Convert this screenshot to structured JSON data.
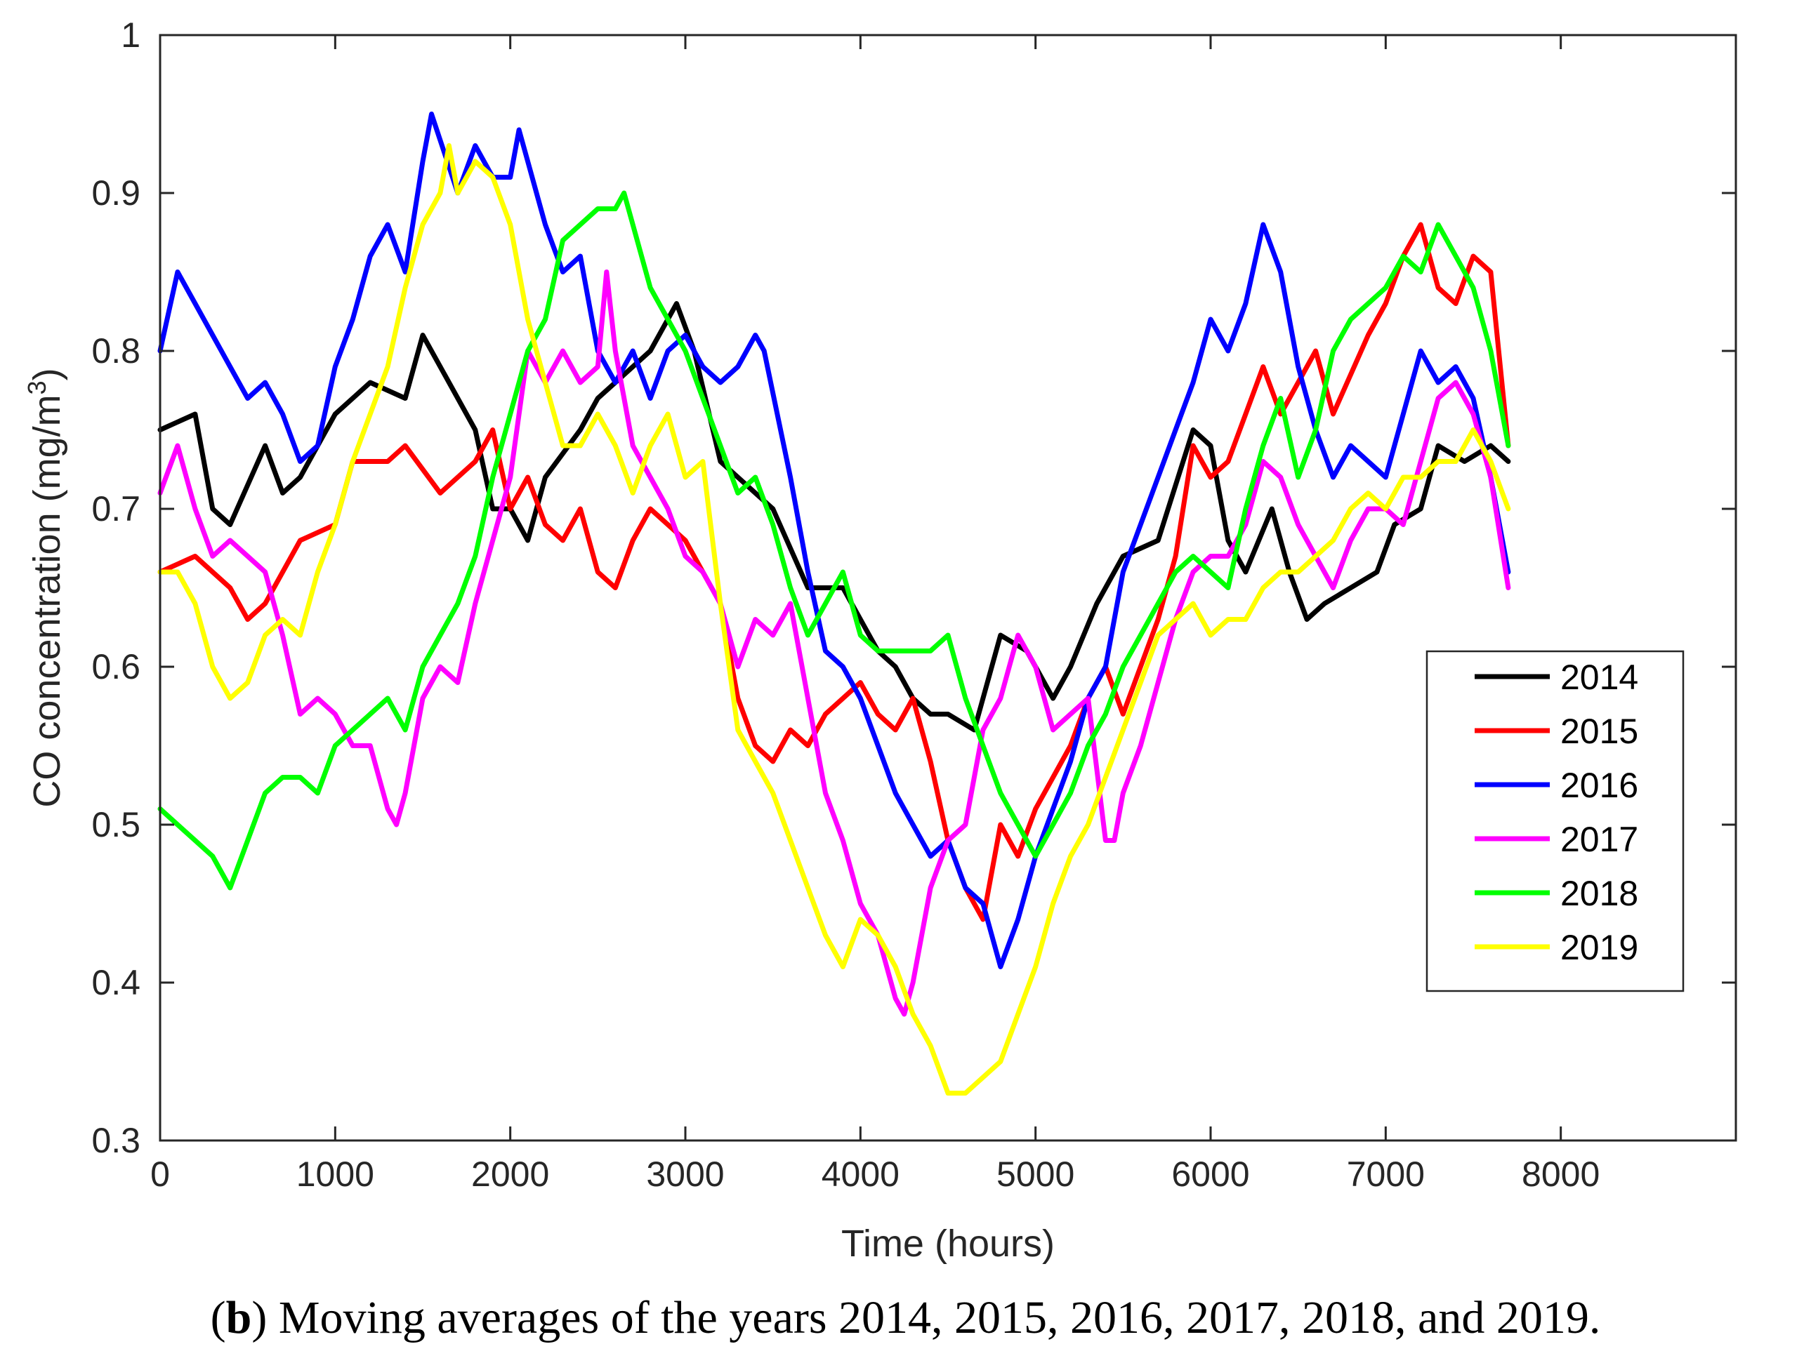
{
  "chart_data": {
    "type": "line",
    "title": "",
    "xlabel": "Time (hours)",
    "ylabel": "CO concentration (mg/m",
    "ylabel_superscript": "3",
    "ylabel_suffix": ")",
    "xlim": [
      0,
      9000
    ],
    "ylim": [
      0.3,
      1.0
    ],
    "xticks": [
      0,
      1000,
      2000,
      3000,
      4000,
      5000,
      6000,
      7000,
      8000
    ],
    "yticks": [
      0.3,
      0.4,
      0.5,
      0.6,
      0.7,
      0.8,
      0.9,
      1.0
    ],
    "xtick_labels": [
      "0",
      "1000",
      "2000",
      "3000",
      "4000",
      "5000",
      "6000",
      "7000",
      "8000"
    ],
    "ytick_labels": [
      "0.3",
      "0.4",
      "0.5",
      "0.6",
      "0.7",
      "0.8",
      "0.9",
      "1"
    ],
    "grid": false,
    "legend_position": "right-middle",
    "series": [
      {
        "name": "2014",
        "color": "#000000",
        "x": [
          0,
          200,
          300,
          400,
          600,
          700,
          800,
          1000,
          1200,
          1400,
          1500,
          1700,
          1800,
          1900,
          2000,
          2100,
          2200,
          2400,
          2500,
          2700,
          2800,
          2950,
          3050,
          3200,
          3400,
          3500,
          3700,
          3900,
          4000,
          4100,
          4200,
          4300,
          4400,
          4500,
          4650,
          4800,
          4950,
          5100,
          5200,
          5350,
          5500,
          5700,
          5900,
          6000,
          6100,
          6200,
          6350,
          6450,
          6550,
          6650,
          6800,
          6950,
          7050,
          7200,
          7300,
          7450,
          7600,
          7700
        ],
        "y": [
          0.75,
          0.76,
          0.7,
          0.69,
          0.74,
          0.71,
          0.72,
          0.76,
          0.78,
          0.77,
          0.81,
          0.77,
          0.75,
          0.7,
          0.7,
          0.68,
          0.72,
          0.75,
          0.77,
          0.79,
          0.8,
          0.83,
          0.8,
          0.73,
          0.71,
          0.7,
          0.65,
          0.65,
          0.63,
          0.61,
          0.6,
          0.58,
          0.57,
          0.57,
          0.56,
          0.62,
          0.61,
          0.58,
          0.6,
          0.64,
          0.67,
          0.68,
          0.75,
          0.74,
          0.68,
          0.66,
          0.7,
          0.66,
          0.63,
          0.64,
          0.65,
          0.66,
          0.69,
          0.7,
          0.74,
          0.73,
          0.74,
          0.73
        ]
      },
      {
        "name": "2015",
        "color": "#ff0000",
        "x": [
          0,
          200,
          400,
          500,
          600,
          800,
          1000,
          1100,
          1300,
          1400,
          1600,
          1800,
          1900,
          2000,
          2100,
          2200,
          2300,
          2400,
          2500,
          2600,
          2700,
          2800,
          2900,
          3000,
          3100,
          3200,
          3300,
          3400,
          3500,
          3600,
          3700,
          3800,
          3900,
          4000,
          4100,
          4200,
          4300,
          4400,
          4500,
          4600,
          4700,
          4800,
          4900,
          5000,
          5100,
          5200,
          5300,
          5400,
          5500,
          5700,
          5800,
          5900,
          6000,
          6100,
          6200,
          6300,
          6400,
          6500,
          6600,
          6700,
          6900,
          7000,
          7100,
          7200,
          7300,
          7400,
          7500,
          7600,
          7700
        ],
        "y": [
          0.66,
          0.67,
          0.65,
          0.63,
          0.64,
          0.68,
          0.69,
          0.73,
          0.73,
          0.74,
          0.71,
          0.73,
          0.75,
          0.7,
          0.72,
          0.69,
          0.68,
          0.7,
          0.66,
          0.65,
          0.68,
          0.7,
          0.69,
          0.68,
          0.66,
          0.64,
          0.58,
          0.55,
          0.54,
          0.56,
          0.55,
          0.57,
          0.58,
          0.59,
          0.57,
          0.56,
          0.58,
          0.54,
          0.49,
          0.46,
          0.44,
          0.5,
          0.48,
          0.51,
          0.53,
          0.55,
          0.58,
          0.6,
          0.57,
          0.63,
          0.67,
          0.74,
          0.72,
          0.73,
          0.76,
          0.79,
          0.76,
          0.78,
          0.8,
          0.76,
          0.81,
          0.83,
          0.86,
          0.88,
          0.84,
          0.83,
          0.86,
          0.85,
          0.74
        ]
      },
      {
        "name": "2016",
        "color": "#0000ff",
        "x": [
          0,
          100,
          200,
          300,
          400,
          500,
          600,
          700,
          800,
          900,
          1000,
          1100,
          1200,
          1300,
          1400,
          1500,
          1550,
          1700,
          1800,
          1900,
          2000,
          2050,
          2100,
          2200,
          2300,
          2400,
          2500,
          2600,
          2700,
          2800,
          2900,
          3000,
          3100,
          3200,
          3300,
          3400,
          3450,
          3600,
          3700,
          3800,
          3900,
          4000,
          4100,
          4200,
          4300,
          4400,
          4500,
          4600,
          4700,
          4800,
          4900,
          5000,
          5100,
          5200,
          5300,
          5400,
          5500,
          5700,
          5800,
          5900,
          6000,
          6100,
          6200,
          6300,
          6400,
          6500,
          6600,
          6700,
          6800,
          7000,
          7100,
          7200,
          7300,
          7400,
          7500,
          7600,
          7700
        ],
        "y": [
          0.8,
          0.85,
          0.83,
          0.81,
          0.79,
          0.77,
          0.78,
          0.76,
          0.73,
          0.74,
          0.79,
          0.82,
          0.86,
          0.88,
          0.85,
          0.92,
          0.95,
          0.9,
          0.93,
          0.91,
          0.91,
          0.94,
          0.92,
          0.88,
          0.85,
          0.86,
          0.8,
          0.78,
          0.8,
          0.77,
          0.8,
          0.81,
          0.79,
          0.78,
          0.79,
          0.81,
          0.8,
          0.72,
          0.66,
          0.61,
          0.6,
          0.58,
          0.55,
          0.52,
          0.5,
          0.48,
          0.49,
          0.46,
          0.45,
          0.41,
          0.44,
          0.48,
          0.51,
          0.54,
          0.58,
          0.6,
          0.66,
          0.72,
          0.75,
          0.78,
          0.82,
          0.8,
          0.83,
          0.88,
          0.85,
          0.79,
          0.75,
          0.72,
          0.74,
          0.72,
          0.76,
          0.8,
          0.78,
          0.79,
          0.77,
          0.72,
          0.66
        ]
      },
      {
        "name": "2017",
        "color": "#ff00ff",
        "x": [
          0,
          100,
          200,
          300,
          400,
          500,
          600,
          700,
          800,
          900,
          1000,
          1100,
          1200,
          1300,
          1350,
          1400,
          1500,
          1600,
          1700,
          1800,
          1900,
          2000,
          2100,
          2200,
          2300,
          2400,
          2500,
          2550,
          2600,
          2700,
          2800,
          2900,
          3000,
          3100,
          3200,
          3300,
          3400,
          3500,
          3600,
          3700,
          3800,
          3900,
          4000,
          4100,
          4200,
          4250,
          4300,
          4400,
          4500,
          4600,
          4700,
          4800,
          4900,
          5000,
          5100,
          5200,
          5300,
          5400,
          5450,
          5500,
          5600,
          5700,
          5800,
          5900,
          6000,
          6100,
          6200,
          6300,
          6400,
          6500,
          6600,
          6700,
          6800,
          6900,
          7000,
          7100,
          7200,
          7300,
          7400,
          7500,
          7600,
          7700
        ],
        "y": [
          0.71,
          0.74,
          0.7,
          0.67,
          0.68,
          0.67,
          0.66,
          0.62,
          0.57,
          0.58,
          0.57,
          0.55,
          0.55,
          0.51,
          0.5,
          0.52,
          0.58,
          0.6,
          0.59,
          0.64,
          0.68,
          0.72,
          0.8,
          0.78,
          0.8,
          0.78,
          0.79,
          0.85,
          0.8,
          0.74,
          0.72,
          0.7,
          0.67,
          0.66,
          0.64,
          0.6,
          0.63,
          0.62,
          0.64,
          0.58,
          0.52,
          0.49,
          0.45,
          0.43,
          0.39,
          0.38,
          0.4,
          0.46,
          0.49,
          0.5,
          0.56,
          0.58,
          0.62,
          0.6,
          0.56,
          0.57,
          0.58,
          0.49,
          0.49,
          0.52,
          0.55,
          0.59,
          0.63,
          0.66,
          0.67,
          0.67,
          0.69,
          0.73,
          0.72,
          0.69,
          0.67,
          0.65,
          0.68,
          0.7,
          0.7,
          0.69,
          0.73,
          0.77,
          0.78,
          0.76,
          0.72,
          0.65
        ]
      },
      {
        "name": "2018",
        "color": "#00ff00",
        "x": [
          0,
          100,
          200,
          300,
          400,
          500,
          600,
          700,
          800,
          900,
          1000,
          1100,
          1200,
          1300,
          1400,
          1500,
          1600,
          1700,
          1800,
          1900,
          2000,
          2100,
          2200,
          2300,
          2400,
          2500,
          2600,
          2650,
          2700,
          2800,
          2900,
          3000,
          3100,
          3200,
          3300,
          3400,
          3500,
          3600,
          3700,
          3800,
          3900,
          4000,
          4100,
          4200,
          4300,
          4400,
          4500,
          4600,
          4700,
          4800,
          4900,
          5000,
          5100,
          5200,
          5300,
          5400,
          5500,
          5600,
          5700,
          5800,
          5900,
          6000,
          6100,
          6200,
          6300,
          6400,
          6500,
          6600,
          6700,
          6800,
          6900,
          7000,
          7100,
          7200,
          7300,
          7400,
          7500,
          7600,
          7700
        ],
        "y": [
          0.51,
          0.5,
          0.49,
          0.48,
          0.46,
          0.49,
          0.52,
          0.53,
          0.53,
          0.52,
          0.55,
          0.56,
          0.57,
          0.58,
          0.56,
          0.6,
          0.62,
          0.64,
          0.67,
          0.72,
          0.76,
          0.8,
          0.82,
          0.87,
          0.88,
          0.89,
          0.89,
          0.9,
          0.88,
          0.84,
          0.82,
          0.8,
          0.77,
          0.74,
          0.71,
          0.72,
          0.69,
          0.65,
          0.62,
          0.64,
          0.66,
          0.62,
          0.61,
          0.61,
          0.61,
          0.61,
          0.62,
          0.58,
          0.55,
          0.52,
          0.5,
          0.48,
          0.5,
          0.52,
          0.55,
          0.57,
          0.6,
          0.62,
          0.64,
          0.66,
          0.67,
          0.66,
          0.65,
          0.7,
          0.74,
          0.77,
          0.72,
          0.75,
          0.8,
          0.82,
          0.83,
          0.84,
          0.86,
          0.85,
          0.88,
          0.86,
          0.84,
          0.8,
          0.74
        ]
      },
      {
        "name": "2019",
        "color": "#ffff00",
        "x": [
          0,
          100,
          200,
          300,
          400,
          500,
          600,
          700,
          800,
          900,
          1000,
          1100,
          1200,
          1300,
          1400,
          1500,
          1600,
          1650,
          1700,
          1800,
          1900,
          2000,
          2100,
          2200,
          2300,
          2400,
          2500,
          2600,
          2700,
          2800,
          2900,
          3000,
          3100,
          3200,
          3300,
          3400,
          3500,
          3600,
          3700,
          3800,
          3900,
          4000,
          4100,
          4200,
          4300,
          4400,
          4500,
          4600,
          4700,
          4800,
          4900,
          5000,
          5100,
          5200,
          5300,
          5400,
          5500,
          5600,
          5700,
          5800,
          5900,
          6000,
          6100,
          6200,
          6300,
          6400,
          6500,
          6600,
          6700,
          6800,
          6900,
          7000,
          7100,
          7200,
          7300,
          7400,
          7500,
          7600,
          7700
        ],
        "y": [
          0.66,
          0.66,
          0.64,
          0.6,
          0.58,
          0.59,
          0.62,
          0.63,
          0.62,
          0.66,
          0.69,
          0.73,
          0.76,
          0.79,
          0.84,
          0.88,
          0.9,
          0.93,
          0.9,
          0.92,
          0.91,
          0.88,
          0.82,
          0.78,
          0.74,
          0.74,
          0.76,
          0.74,
          0.71,
          0.74,
          0.76,
          0.72,
          0.73,
          0.64,
          0.56,
          0.54,
          0.52,
          0.49,
          0.46,
          0.43,
          0.41,
          0.44,
          0.43,
          0.41,
          0.38,
          0.36,
          0.33,
          0.33,
          0.34,
          0.35,
          0.38,
          0.41,
          0.45,
          0.48,
          0.5,
          0.53,
          0.56,
          0.59,
          0.62,
          0.63,
          0.64,
          0.62,
          0.63,
          0.63,
          0.65,
          0.66,
          0.66,
          0.67,
          0.68,
          0.7,
          0.71,
          0.7,
          0.72,
          0.72,
          0.73,
          0.73,
          0.75,
          0.73,
          0.7
        ]
      }
    ]
  },
  "caption": {
    "label": "b",
    "open_paren": "(",
    "close_paren": ")",
    "text": " Moving averages of the years 2014,  2015,  2016,  2017,  2018, and  2019."
  }
}
